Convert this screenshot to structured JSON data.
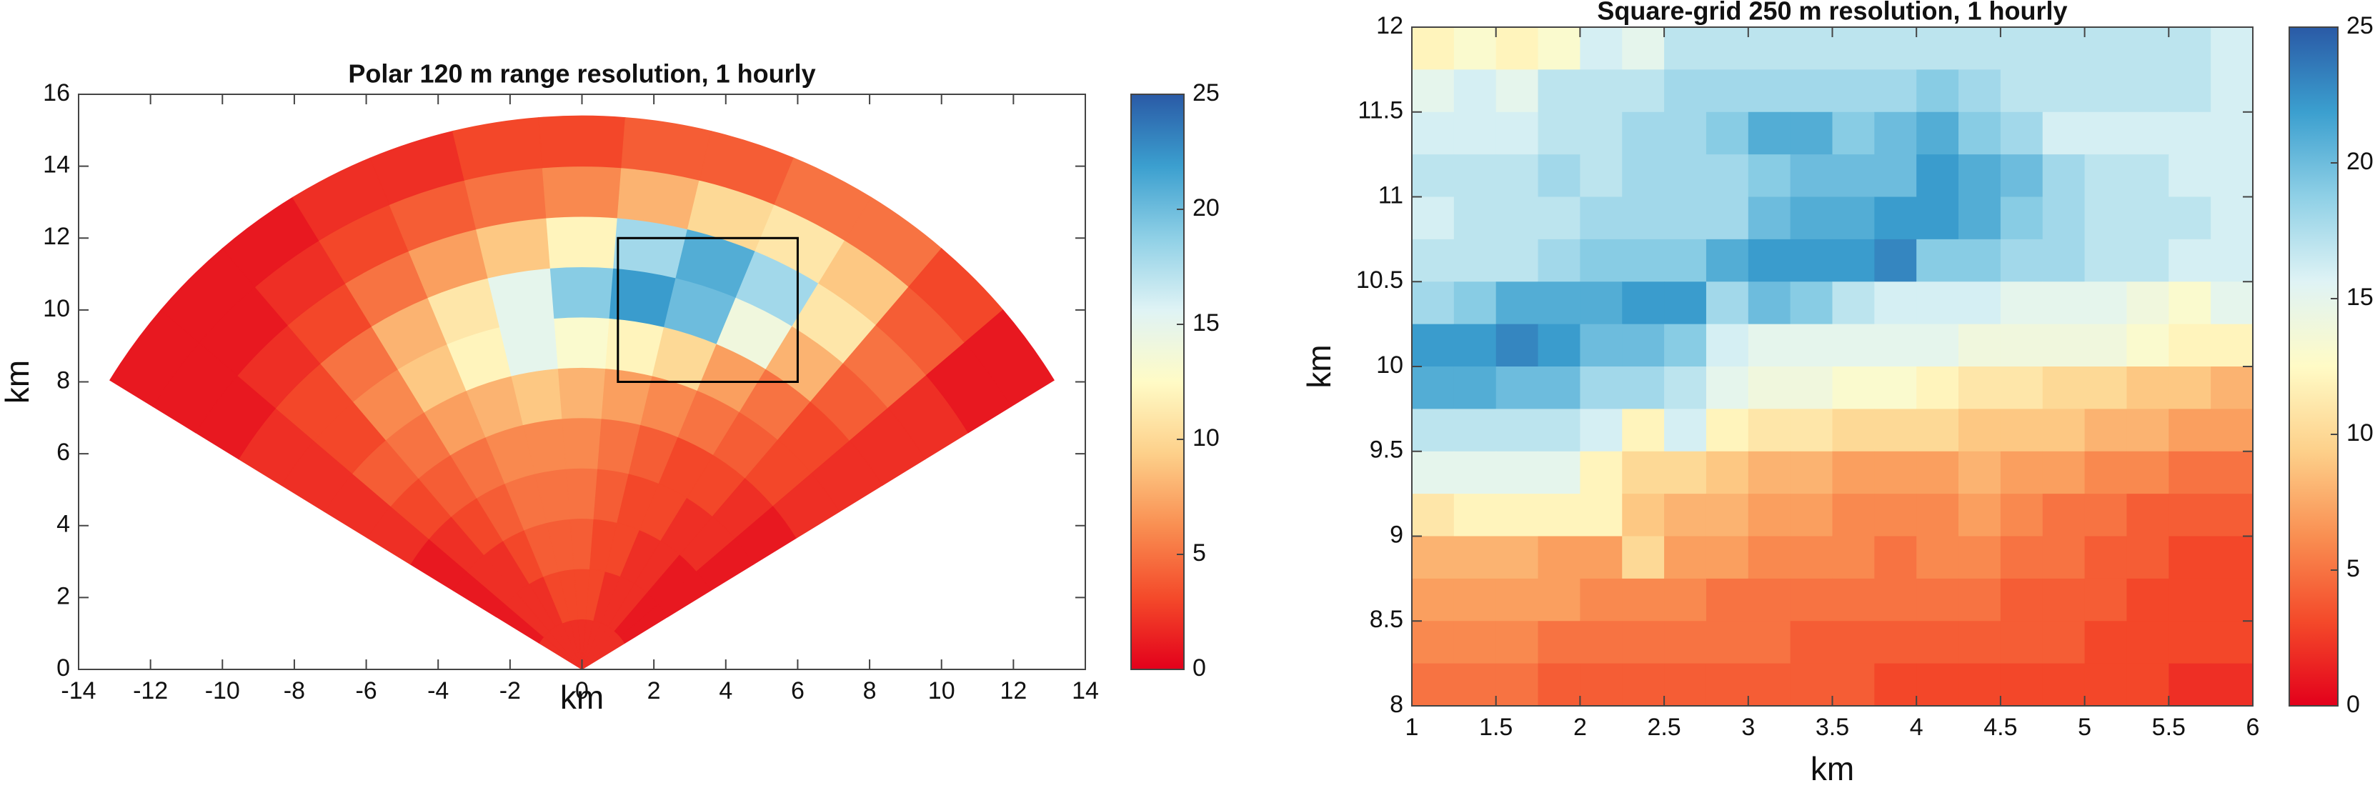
{
  "chart_data": [
    {
      "type": "polar-heatmap",
      "title": "Polar 120 m range resolution, 1 hourly",
      "xlabel": "km",
      "ylabel": "km",
      "xlim": [
        -14,
        14
      ],
      "ylim": [
        0,
        16
      ],
      "xticks": [
        -14,
        -12,
        -10,
        -8,
        -6,
        -4,
        -2,
        0,
        2,
        4,
        6,
        8,
        10,
        12,
        14
      ],
      "yticks": [
        0,
        2,
        4,
        6,
        8,
        10,
        12,
        14,
        16
      ],
      "clim": [
        0,
        25
      ],
      "cticks": [
        0,
        5,
        10,
        15,
        20,
        25
      ],
      "colormap": [
        "#e3001b",
        "#f44a2a",
        "#f98f52",
        "#fdd08a",
        "#fffbc6",
        "#dff3f5",
        "#8fd0e6",
        "#3b9fcf",
        "#2a5aa6"
      ],
      "azimuth_bins": [
        -58.5,
        -49.5,
        -40.5,
        -31.5,
        -22.5,
        -13.5,
        -4.5,
        4.5,
        13.5,
        22.5,
        31.5,
        40.5,
        49.5,
        58.5
      ],
      "range_bins": [
        0,
        1.4,
        2.8,
        4.2,
        5.6,
        7,
        8.4,
        9.8,
        11.2,
        12.6,
        14,
        15.4
      ],
      "values": [
        [
          2,
          2,
          2,
          2,
          2,
          2,
          2,
          2,
          2,
          2,
          2,
          2,
          2
        ],
        [
          1,
          2,
          2,
          2,
          3,
          3,
          3,
          3,
          2,
          2,
          2,
          1,
          1
        ],
        [
          1,
          2,
          2,
          3,
          4,
          4,
          4,
          3,
          3,
          2,
          2,
          1,
          1
        ],
        [
          1,
          2,
          3,
          4,
          5,
          5,
          5,
          4,
          3,
          3,
          2,
          2,
          1
        ],
        [
          2,
          3,
          4,
          5,
          6,
          6,
          6,
          5,
          4,
          3,
          3,
          2,
          1
        ],
        [
          2,
          4,
          5,
          7,
          8,
          9,
          8,
          7,
          6,
          5,
          4,
          3,
          2
        ],
        [
          2,
          3,
          6,
          9,
          12,
          15,
          13,
          12,
          10,
          7,
          5,
          3,
          2
        ],
        [
          2,
          3,
          5,
          8,
          11,
          15,
          19,
          22,
          20,
          14,
          8,
          4,
          2
        ],
        [
          1,
          2,
          3,
          5,
          7,
          9,
          12,
          18,
          21,
          18,
          11,
          5,
          2
        ],
        [
          1,
          1,
          2,
          3,
          4,
          5,
          6,
          8,
          10,
          11,
          9,
          4,
          1
        ],
        [
          1,
          1,
          1,
          2,
          2,
          3,
          3,
          4,
          4,
          5,
          5,
          3,
          1
        ]
      ],
      "box_xlim": [
        1,
        6
      ],
      "box_ylim": [
        8,
        12
      ]
    },
    {
      "type": "heatmap",
      "title": "Square-grid 250 m resolution, 1 hourly",
      "xlabel": "km",
      "ylabel": "km",
      "xlim": [
        1,
        6
      ],
      "ylim": [
        8,
        12
      ],
      "xticks": [
        1,
        1.5,
        2,
        2.5,
        3,
        3.5,
        4,
        4.5,
        5,
        5.5,
        6
      ],
      "yticks": [
        8,
        8.5,
        9,
        9.5,
        10,
        10.5,
        11,
        11.5,
        12
      ],
      "clim": [
        0,
        25
      ],
      "cticks": [
        0,
        5,
        10,
        15,
        20,
        25
      ],
      "colormap": [
        "#e3001b",
        "#f44a2a",
        "#f98f52",
        "#fdd08a",
        "#fffbc6",
        "#dff3f5",
        "#8fd0e6",
        "#3b9fcf",
        "#2a5aa6"
      ],
      "x": [
        1.125,
        1.375,
        1.625,
        1.875,
        2.125,
        2.375,
        2.625,
        2.875,
        3.125,
        3.375,
        3.625,
        3.875,
        4.125,
        4.375,
        4.625,
        4.875,
        5.125,
        5.375,
        5.625,
        5.875
      ],
      "y": [
        11.875,
        11.625,
        11.375,
        11.125,
        10.875,
        10.625,
        10.375,
        10.125,
        9.875,
        9.625,
        9.375,
        9.125,
        8.875,
        8.625,
        8.375,
        8.125
      ],
      "values": [
        [
          12,
          13,
          12,
          13,
          16,
          15,
          17,
          17,
          17,
          17,
          17,
          17,
          17,
          17,
          17,
          17,
          17,
          17,
          17,
          16
        ],
        [
          15,
          16,
          15,
          17,
          17,
          17,
          18,
          18,
          18,
          18,
          18,
          18,
          19,
          18,
          17,
          17,
          17,
          17,
          17,
          16
        ],
        [
          16,
          16,
          16,
          17,
          17,
          18,
          18,
          19,
          21,
          21,
          19,
          20,
          21,
          19,
          18,
          16,
          16,
          16,
          16,
          16
        ],
        [
          17,
          17,
          17,
          18,
          17,
          18,
          18,
          18,
          19,
          20,
          20,
          20,
          22,
          21,
          20,
          18,
          17,
          17,
          16,
          16
        ],
        [
          16,
          17,
          17,
          17,
          18,
          18,
          18,
          18,
          20,
          21,
          21,
          22,
          22,
          21,
          19,
          18,
          17,
          17,
          17,
          16
        ],
        [
          17,
          17,
          17,
          18,
          19,
          19,
          19,
          21,
          22,
          22,
          22,
          23,
          19,
          19,
          18,
          18,
          17,
          17,
          16,
          16
        ],
        [
          18,
          19,
          21,
          21,
          21,
          22,
          22,
          18,
          20,
          19,
          17,
          16,
          16,
          16,
          15,
          15,
          15,
          14,
          13,
          15
        ],
        [
          22,
          22,
          23,
          22,
          20,
          20,
          19,
          16,
          15,
          15,
          15,
          15,
          15,
          14,
          14,
          14,
          14,
          13,
          12,
          12
        ],
        [
          21,
          21,
          20,
          20,
          18,
          18,
          17,
          15,
          14,
          14,
          13,
          13,
          12,
          11,
          11,
          10,
          10,
          9,
          9,
          8
        ],
        [
          17,
          17,
          17,
          17,
          16,
          12,
          16,
          12,
          11,
          11,
          10,
          10,
          10,
          9,
          9,
          9,
          8,
          8,
          7,
          7
        ],
        [
          15,
          15,
          15,
          15,
          12,
          10,
          10,
          9,
          8,
          8,
          7,
          7,
          7,
          8,
          7,
          7,
          6,
          6,
          5,
          5
        ],
        [
          11,
          12,
          12,
          12,
          12,
          9,
          8,
          8,
          7,
          7,
          6,
          6,
          6,
          7,
          6,
          5,
          5,
          4,
          4,
          4
        ],
        [
          8,
          8,
          8,
          7,
          7,
          10,
          7,
          7,
          6,
          6,
          6,
          5,
          6,
          6,
          5,
          5,
          4,
          4,
          3,
          3
        ],
        [
          7,
          7,
          7,
          7,
          6,
          6,
          6,
          5,
          5,
          5,
          5,
          5,
          5,
          5,
          4,
          4,
          4,
          3,
          3,
          3
        ],
        [
          6,
          6,
          6,
          5,
          5,
          5,
          5,
          5,
          5,
          4,
          4,
          4,
          4,
          4,
          4,
          4,
          3,
          3,
          3,
          3
        ],
        [
          5,
          5,
          5,
          4,
          4,
          4,
          4,
          4,
          4,
          4,
          4,
          3,
          3,
          3,
          3,
          3,
          3,
          3,
          2,
          2
        ]
      ]
    }
  ]
}
